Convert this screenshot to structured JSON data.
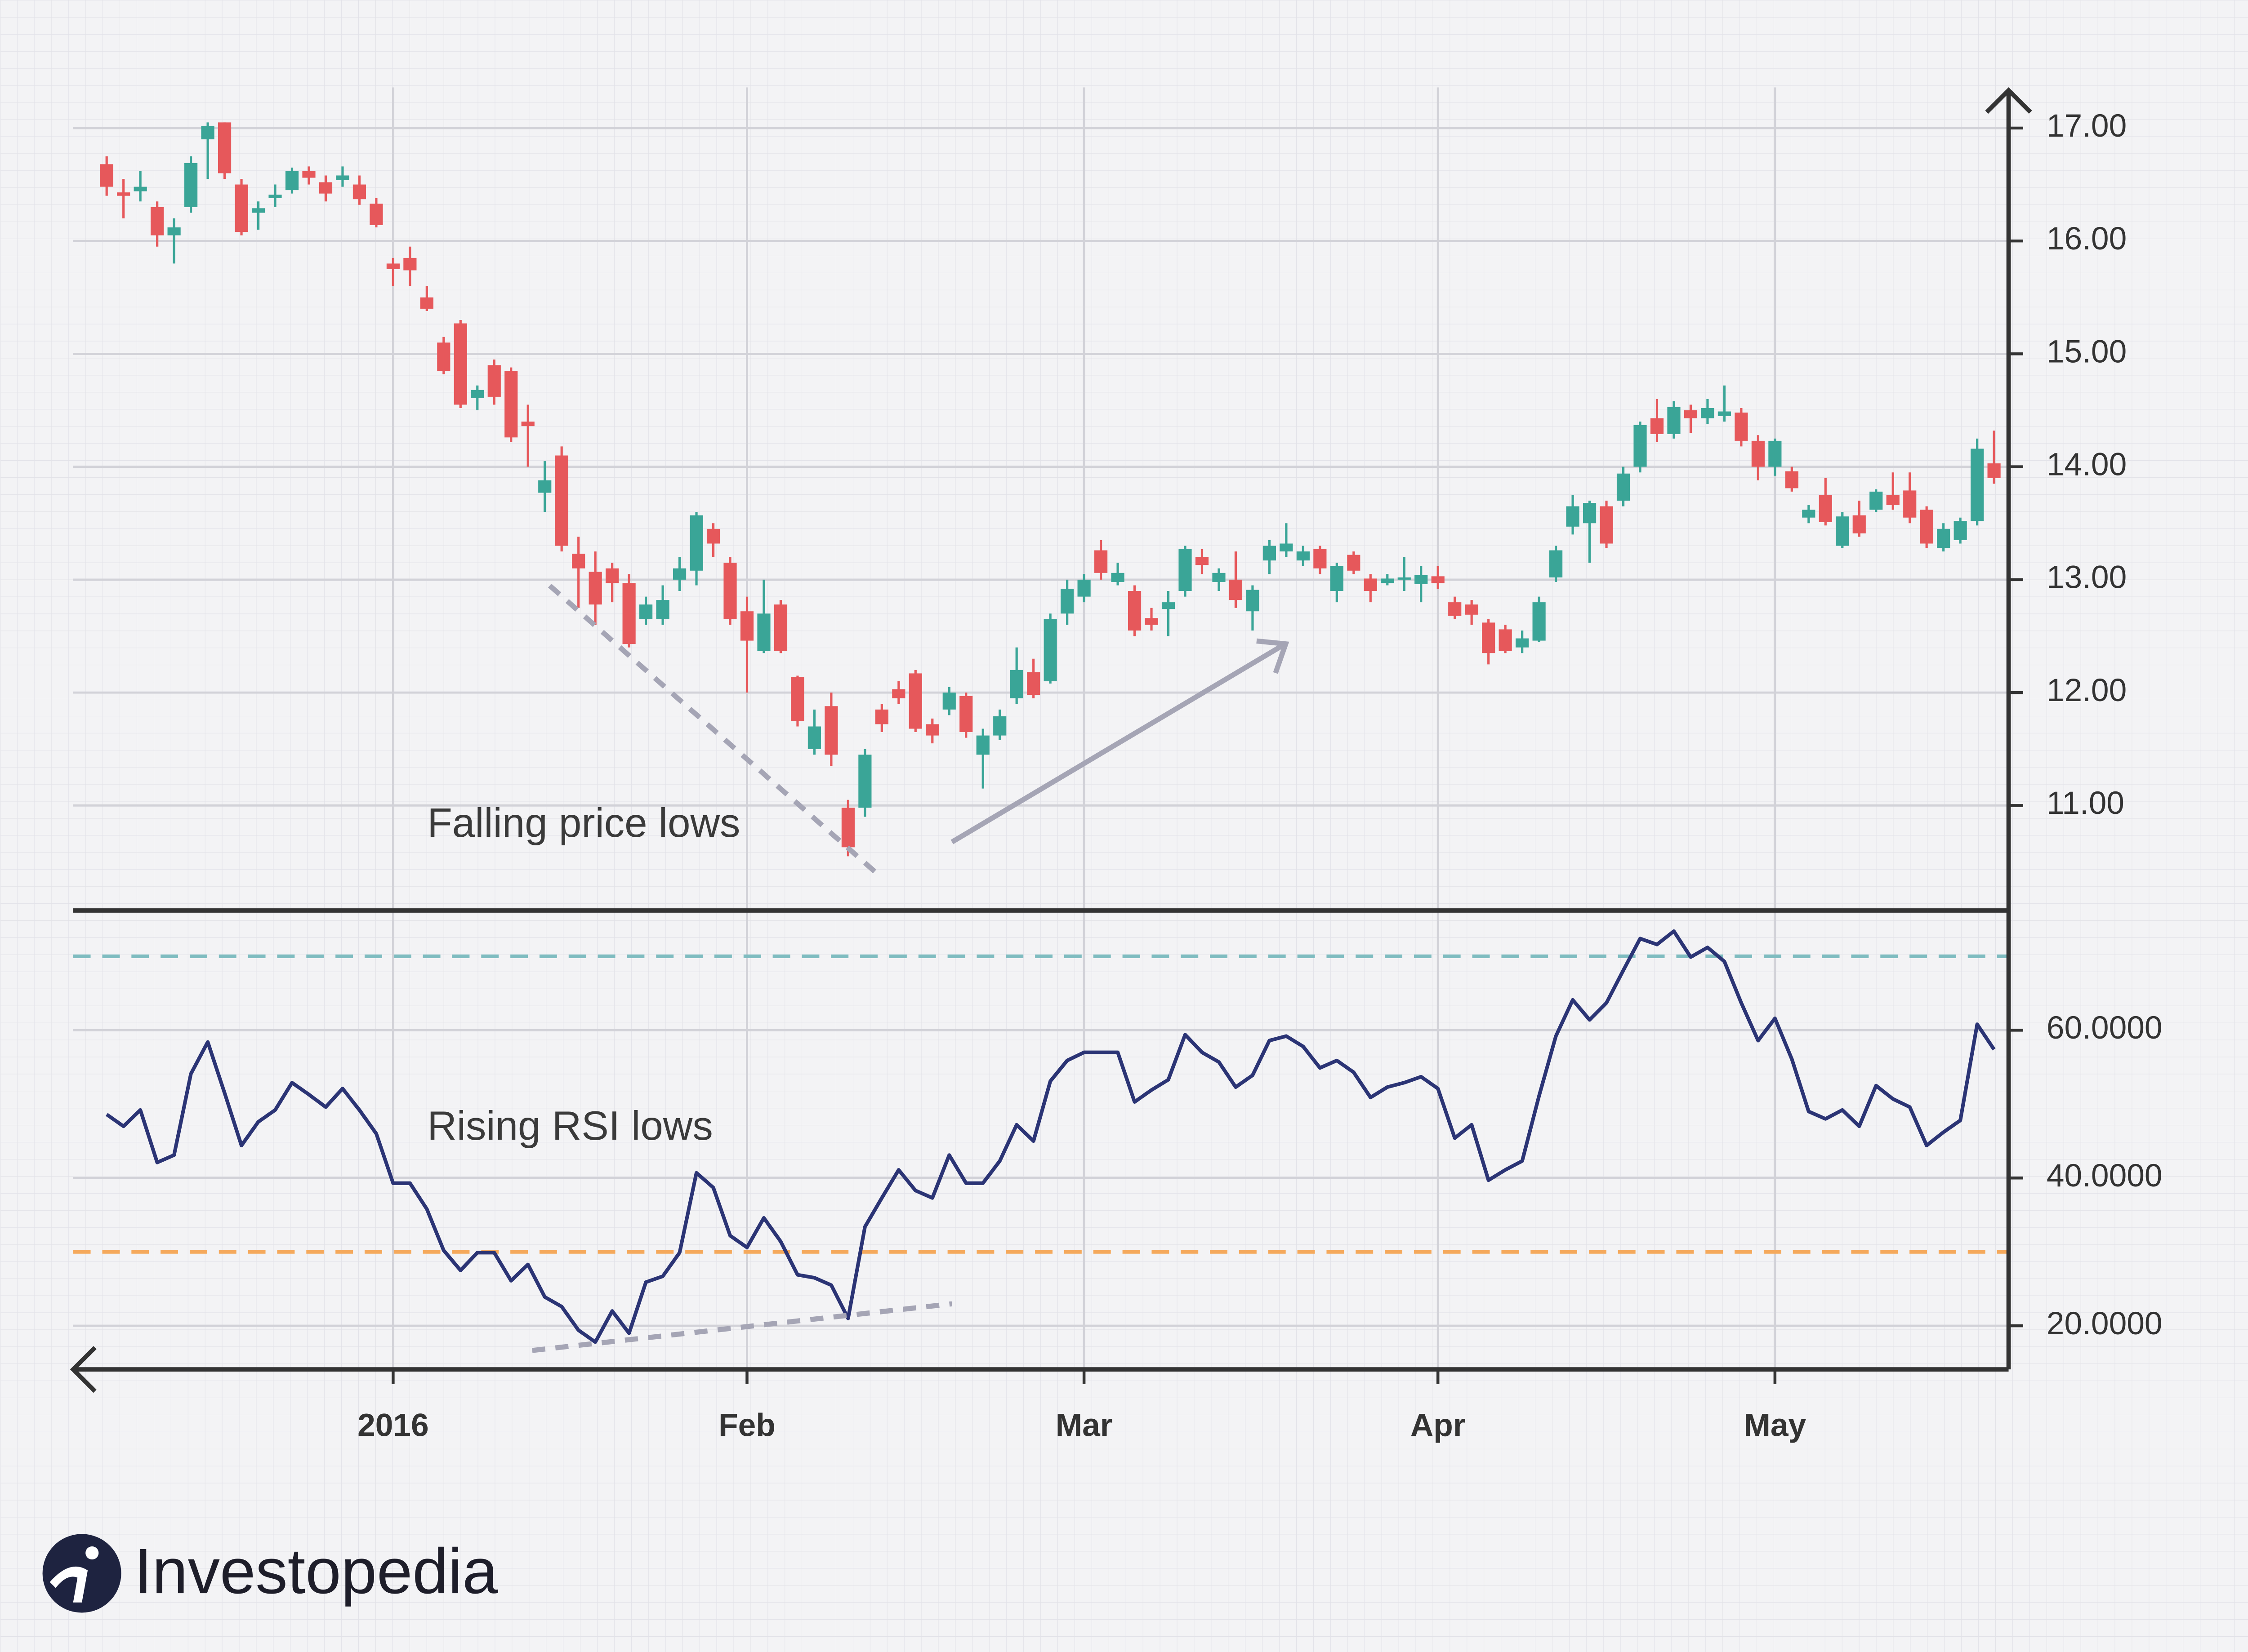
{
  "brand": "Investopedia",
  "chart_data": [
    {
      "type": "candlestick",
      "annotation": "Falling price lows",
      "up_color": "#3aa597",
      "down_color": "#e6585b",
      "categories": [
        null,
        null,
        null,
        null,
        null,
        null,
        null,
        null,
        null,
        null,
        null,
        null,
        null,
        null,
        null,
        null,
        null,
        "2016",
        null,
        null,
        null,
        null,
        null,
        null,
        null,
        null,
        null,
        null,
        null,
        null,
        null,
        null,
        null,
        null,
        null,
        null,
        null,
        null,
        "Feb",
        null,
        null,
        null,
        null,
        null,
        null,
        null,
        null,
        null,
        null,
        null,
        null,
        null,
        null,
        null,
        null,
        null,
        null,
        null,
        "Mar",
        null,
        null,
        null,
        null,
        null,
        null,
        null,
        null,
        null,
        null,
        null,
        null,
        null,
        null,
        null,
        null,
        null,
        null,
        null,
        null,
        "Apr",
        null,
        null,
        null,
        null,
        null,
        null,
        null,
        null,
        null,
        null,
        null,
        null,
        null,
        null,
        null,
        null,
        null,
        null,
        null,
        "May",
        null,
        null,
        null,
        null,
        null,
        null,
        null,
        null,
        null,
        null,
        null,
        null,
        null
      ],
      "open": [
        16.68,
        16.43,
        16.44,
        16.3,
        16.05,
        16.3,
        16.9,
        17.05,
        16.5,
        16.25,
        16.38,
        16.45,
        16.62,
        16.52,
        16.54,
        16.5,
        16.33,
        15.8,
        15.85,
        15.5,
        15.1,
        15.27,
        14.61,
        14.9,
        14.85,
        14.4,
        13.77,
        14.1,
        13.23,
        13.07,
        13.1,
        12.97,
        12.65,
        12.65,
        13.0,
        13.08,
        13.45,
        13.15,
        12.72,
        12.37,
        12.78,
        12.14,
        11.5,
        11.88,
        10.98,
        10.98,
        11.85,
        12.03,
        12.17,
        11.72,
        11.85,
        11.97,
        11.45,
        11.62,
        11.95,
        12.18,
        12.1,
        12.7,
        12.85,
        13.26,
        12.98,
        12.9,
        12.66,
        12.74,
        12.9,
        13.2,
        12.98,
        13.0,
        12.72,
        13.17,
        13.25,
        13.17,
        13.27,
        12.9,
        13.22,
        13.01,
        12.97,
        13.0,
        12.96,
        13.03,
        12.8,
        12.78,
        12.62,
        12.56,
        12.4,
        12.46,
        13.02,
        13.47,
        13.5,
        13.65,
        13.7,
        14.0,
        14.43,
        14.29,
        14.5,
        14.43,
        14.45,
        14.48,
        14.23,
        14.0,
        13.96,
        13.55,
        13.75,
        13.3,
        13.57,
        13.62,
        13.75,
        13.79,
        13.62,
        13.28,
        13.35,
        13.52,
        14.03
      ],
      "high": [
        16.75,
        16.55,
        16.62,
        16.35,
        16.2,
        16.75,
        17.05,
        17.05,
        16.55,
        16.35,
        16.5,
        16.65,
        16.66,
        16.58,
        16.66,
        16.58,
        16.38,
        15.85,
        15.95,
        15.6,
        15.15,
        15.3,
        14.72,
        14.95,
        14.88,
        14.55,
        14.05,
        14.18,
        13.38,
        13.25,
        13.15,
        13.05,
        12.85,
        12.95,
        13.2,
        13.6,
        13.5,
        13.2,
        12.85,
        13.0,
        12.82,
        12.15,
        11.85,
        12.0,
        11.05,
        11.5,
        11.9,
        12.1,
        12.2,
        11.77,
        12.05,
        12.0,
        11.68,
        11.85,
        12.4,
        12.3,
        12.7,
        13.0,
        13.05,
        13.35,
        13.15,
        12.95,
        12.75,
        12.9,
        13.3,
        13.27,
        13.1,
        13.25,
        12.95,
        13.35,
        13.5,
        13.3,
        13.3,
        13.15,
        13.25,
        13.05,
        13.05,
        13.2,
        13.12,
        13.12,
        12.85,
        12.82,
        12.65,
        12.6,
        12.55,
        12.85,
        13.3,
        13.75,
        13.7,
        13.7,
        14.0,
        14.4,
        14.6,
        14.58,
        14.55,
        14.6,
        14.72,
        14.52,
        14.28,
        14.25,
        14.0,
        13.66,
        13.9,
        13.6,
        13.7,
        13.8,
        13.95,
        13.95,
        13.65,
        13.5,
        13.55,
        14.25,
        14.32
      ],
      "low": [
        16.4,
        16.2,
        16.35,
        15.95,
        15.8,
        16.25,
        16.55,
        16.55,
        16.05,
        16.1,
        16.3,
        16.42,
        16.5,
        16.35,
        16.48,
        16.32,
        16.12,
        15.6,
        15.6,
        15.38,
        14.82,
        14.52,
        14.5,
        14.55,
        14.22,
        14.0,
        13.6,
        13.25,
        12.75,
        12.6,
        12.8,
        12.4,
        12.6,
        12.6,
        12.9,
        12.95,
        13.2,
        12.6,
        12.0,
        12.35,
        12.35,
        11.7,
        11.45,
        11.35,
        10.55,
        10.9,
        11.65,
        11.9,
        11.65,
        11.55,
        11.8,
        11.6,
        11.15,
        11.58,
        11.9,
        11.95,
        12.08,
        12.6,
        12.8,
        13.0,
        12.95,
        12.5,
        12.55,
        12.5,
        12.85,
        13.05,
        12.9,
        12.75,
        12.55,
        13.05,
        13.2,
        13.12,
        13.05,
        12.8,
        13.05,
        12.8,
        12.95,
        12.9,
        12.8,
        12.92,
        12.65,
        12.6,
        12.25,
        12.35,
        12.35,
        12.45,
        12.98,
        13.4,
        13.15,
        13.28,
        13.65,
        13.95,
        14.22,
        14.25,
        14.3,
        14.38,
        14.4,
        14.18,
        13.88,
        13.92,
        13.78,
        13.5,
        13.48,
        13.28,
        13.38,
        13.6,
        13.62,
        13.5,
        13.28,
        13.25,
        13.32,
        13.48,
        13.85
      ],
      "close": [
        16.48,
        16.4,
        16.48,
        16.05,
        16.12,
        16.69,
        17.02,
        16.6,
        16.08,
        16.29,
        16.41,
        16.62,
        16.56,
        16.42,
        16.58,
        16.37,
        16.14,
        15.75,
        15.74,
        15.4,
        14.85,
        14.55,
        14.68,
        14.62,
        14.26,
        14.36,
        13.88,
        13.3,
        13.1,
        12.78,
        12.97,
        12.43,
        12.78,
        12.82,
        13.1,
        13.57,
        13.32,
        12.65,
        12.46,
        12.7,
        12.37,
        11.75,
        11.7,
        11.45,
        10.63,
        11.45,
        11.72,
        11.95,
        11.68,
        11.62,
        12.0,
        11.65,
        11.62,
        11.79,
        12.2,
        11.98,
        12.65,
        12.92,
        13.0,
        13.06,
        13.06,
        12.55,
        12.6,
        12.8,
        13.27,
        13.13,
        13.06,
        12.82,
        12.91,
        13.3,
        13.32,
        13.25,
        13.1,
        13.12,
        13.08,
        12.9,
        13.01,
        13.02,
        13.04,
        12.97,
        12.68,
        12.69,
        12.35,
        12.37,
        12.48,
        12.8,
        13.26,
        13.65,
        13.68,
        13.32,
        13.94,
        14.37,
        14.29,
        14.53,
        14.43,
        14.52,
        14.49,
        14.23,
        14.0,
        14.23,
        13.81,
        13.62,
        13.51,
        13.56,
        13.41,
        13.78,
        13.66,
        13.55,
        13.32,
        13.45,
        13.52,
        14.16,
        13.9
      ],
      "ylim": [
        10.07,
        17.36
      ],
      "yticks": [
        {
          "value": 11,
          "label": "11.00"
        },
        {
          "value": 12,
          "label": "12.00"
        },
        {
          "value": 13,
          "label": "13.00"
        },
        {
          "value": 14,
          "label": "14.00"
        },
        {
          "value": 15,
          "label": "15.00"
        },
        {
          "value": 16,
          "label": "16.00"
        },
        {
          "value": 17,
          "label": "17.00"
        }
      ],
      "grid": true
    },
    {
      "type": "line",
      "annotation": "Rising RSI lows",
      "color": "#2b3475",
      "values": [
        48.6,
        47.0,
        49.2,
        42.1,
        43.1,
        54.1,
        58.4,
        51.5,
        44.4,
        47.6,
        49.2,
        52.9,
        51.3,
        49.6,
        52.1,
        49.2,
        46.0,
        39.3,
        39.3,
        35.8,
        30.2,
        27.5,
        29.9,
        29.9,
        26.1,
        28.3,
        23.9,
        22.6,
        19.4,
        17.8,
        22.0,
        19.0,
        25.9,
        26.7,
        29.9,
        40.7,
        38.7,
        32.2,
        30.6,
        34.6,
        31.4,
        26.9,
        26.5,
        25.5,
        21.0,
        33.4,
        37.3,
        41.1,
        38.3,
        37.3,
        43.1,
        39.3,
        39.3,
        42.3,
        47.2,
        45.0,
        53.1,
        55.9,
        57.0,
        57.0,
        57.0,
        50.3,
        51.9,
        53.3,
        59.4,
        57.0,
        55.7,
        52.3,
        53.9,
        58.6,
        59.2,
        57.8,
        54.9,
        55.9,
        54.3,
        50.9,
        52.3,
        52.9,
        53.7,
        52.1,
        45.4,
        47.2,
        39.7,
        41.1,
        42.3,
        51.1,
        59.2,
        64.1,
        61.4,
        63.7,
        68.1,
        72.4,
        71.6,
        73.4,
        69.9,
        71.2,
        69.3,
        63.7,
        58.6,
        61.6,
        56.1,
        49.0,
        48.0,
        49.2,
        47.0,
        52.5,
        50.7,
        49.6,
        44.4,
        46.2,
        47.8,
        60.8,
        57.4
      ],
      "ylim": [
        14.1,
        76.2
      ],
      "yticks": [
        {
          "value": 20,
          "label": "20.0000"
        },
        {
          "value": 40,
          "label": "40.0000"
        },
        {
          "value": 60,
          "label": "60.0000"
        }
      ],
      "reference_lines": [
        {
          "value": 70,
          "color": "#7fbcc0"
        },
        {
          "value": 30,
          "color": "#f5a95c"
        }
      ],
      "grid": true
    }
  ]
}
